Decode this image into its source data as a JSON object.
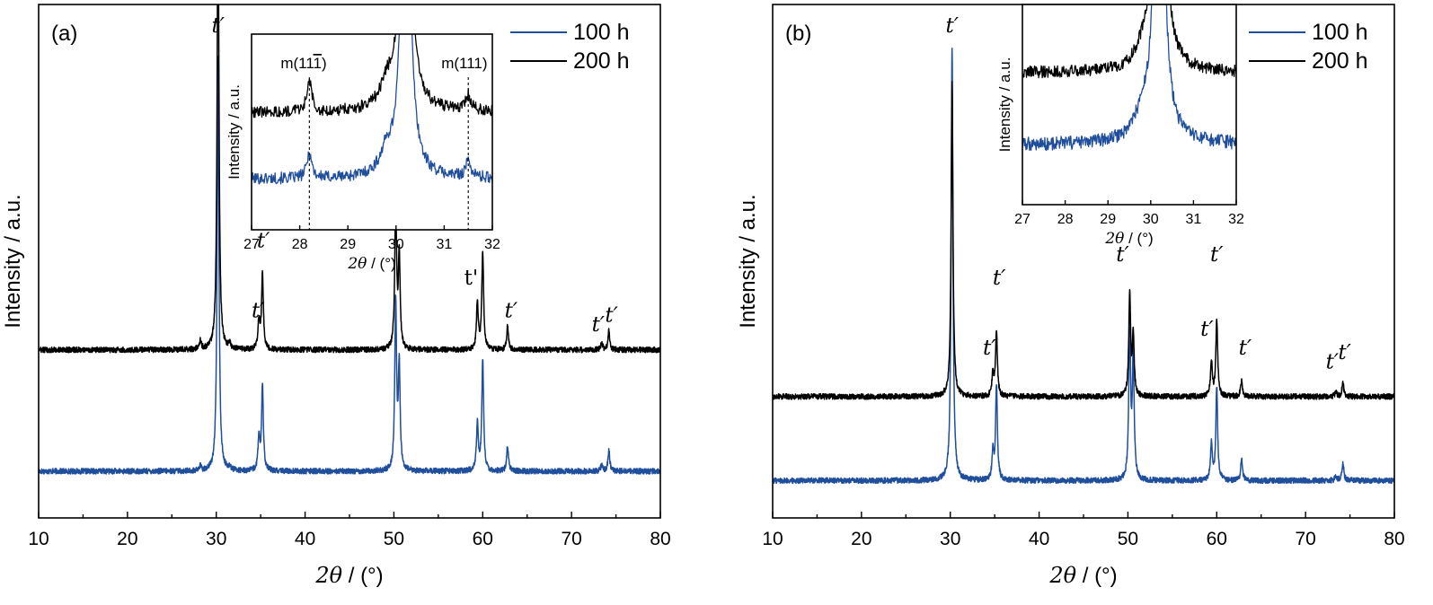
{
  "chart_data": [
    {
      "type": "line",
      "panel_label": "(a)",
      "xlabel_italic": "2θ",
      "xlabel_unit": " / (°)",
      "ylabel": "Intensity / a.u.",
      "xlim": [
        10,
        80
      ],
      "xticks": [
        "10",
        "20",
        "30",
        "40",
        "50",
        "60",
        "70",
        "80"
      ],
      "yticks_shown": false,
      "legend": {
        "placement": "top-right",
        "entries": [
          {
            "label": "100 h",
            "color": "#1f4e9c"
          },
          {
            "label": "200 h",
            "color": "#000000"
          }
        ]
      },
      "series": [
        {
          "name": "100 h",
          "color": "#1f4e9c",
          "baseline": 0.1,
          "noise": 0.006,
          "peaks": [
            [
              28.2,
              0.01
            ],
            [
              30.2,
              0.89
            ],
            [
              31.5,
              0.007
            ],
            [
              34.8,
              0.07
            ],
            [
              35.2,
              0.185
            ],
            [
              50.2,
              0.36
            ],
            [
              50.6,
              0.22
            ],
            [
              59.4,
              0.1
            ],
            [
              60.0,
              0.24
            ],
            [
              62.8,
              0.055
            ],
            [
              73.4,
              0.015
            ],
            [
              74.2,
              0.045
            ]
          ]
        },
        {
          "name": "200 h",
          "color": "#000000",
          "baseline": 0.36,
          "noise": 0.006,
          "peaks": [
            [
              28.2,
              0.018
            ],
            [
              30.2,
              1.0
            ],
            [
              31.5,
              0.01
            ],
            [
              34.8,
              0.06
            ],
            [
              35.2,
              0.165
            ],
            [
              50.2,
              0.315
            ],
            [
              50.6,
              0.2
            ],
            [
              59.4,
              0.1
            ],
            [
              60.0,
              0.21
            ],
            [
              62.8,
              0.05
            ],
            [
              73.4,
              0.015
            ],
            [
              74.2,
              0.04
            ]
          ]
        }
      ],
      "annotations": [
        {
          "text": "t′",
          "x": 30.2,
          "y": 1.04,
          "upright": false
        },
        {
          "text": "t′",
          "x": 34.7,
          "y": 0.43,
          "upright": false
        },
        {
          "text": "t′",
          "x": 35.3,
          "y": 0.58,
          "upright": false
        },
        {
          "text": "t′",
          "x": 49.3,
          "y": 0.71,
          "upright": false
        },
        {
          "text": "t'",
          "x": 58.7,
          "y": 0.5,
          "upright": true
        },
        {
          "text": "t′",
          "x": 59.8,
          "y": 0.64,
          "upright": false
        },
        {
          "text": "t′",
          "x": 63.2,
          "y": 0.43,
          "upright": false
        },
        {
          "text": "t′",
          "x": 73.0,
          "y": 0.4,
          "upright": false
        },
        {
          "text": "t′",
          "x": 74.5,
          "y": 0.42,
          "upright": false
        }
      ],
      "inset": {
        "xlim": [
          27,
          32
        ],
        "xticks": [
          "27",
          "28",
          "29",
          "30",
          "31",
          "32"
        ],
        "xlabel_italic": "2θ",
        "xlabel_unit": " / (°)",
        "ylabel": "Intensity / a.u.",
        "ylim": [
          0,
          1
        ],
        "reference_lines": [
          28.2,
          31.5
        ],
        "reference_labels": [
          "m(11",
          "m(111)"
        ],
        "series": [
          {
            "name": "100 h",
            "color": "#1f4e9c",
            "baseline": 0.26,
            "noise": 0.03,
            "peaks": [
              [
                28.2,
                0.13,
                0.06
              ],
              [
                29.8,
                0.1,
                0.15
              ],
              [
                30.2,
                2.0,
                0.1
              ],
              [
                31.5,
                0.08,
                0.07
              ]
            ]
          },
          {
            "name": "200 h",
            "color": "#000000",
            "baseline": 0.6,
            "noise": 0.03,
            "peaks": [
              [
                28.2,
                0.16,
                0.06
              ],
              [
                29.8,
                0.11,
                0.15
              ],
              [
                30.2,
                2.0,
                0.1
              ],
              [
                31.5,
                0.08,
                0.07
              ]
            ]
          }
        ]
      }
    },
    {
      "type": "line",
      "panel_label": "(b)",
      "xlabel_italic": "2θ",
      "xlabel_unit": " / (°)",
      "ylabel": "Intensity / a.u.",
      "xlim": [
        10,
        80
      ],
      "xticks": [
        "10",
        "20",
        "30",
        "40",
        "50",
        "60",
        "70",
        "80"
      ],
      "yticks_shown": false,
      "legend": {
        "placement": "top-right",
        "entries": [
          {
            "label": "100 h",
            "color": "#1f4e9c"
          },
          {
            "label": "200 h",
            "color": "#000000"
          }
        ]
      },
      "series": [
        {
          "name": "100 h",
          "color": "#1f4e9c",
          "baseline": 0.08,
          "noise": 0.006,
          "peaks": [
            [
              30.2,
              0.93
            ],
            [
              34.8,
              0.06
            ],
            [
              35.2,
              0.205
            ],
            [
              50.2,
              0.33
            ],
            [
              50.6,
              0.26
            ],
            [
              59.4,
              0.08
            ],
            [
              60.0,
              0.2
            ],
            [
              62.8,
              0.045
            ],
            [
              73.4,
              0.01
            ],
            [
              74.2,
              0.04
            ]
          ]
        },
        {
          "name": "200 h",
          "color": "#000000",
          "baseline": 0.26,
          "noise": 0.006,
          "peaks": [
            [
              30.2,
              0.67
            ],
            [
              34.8,
              0.05
            ],
            [
              35.2,
              0.14
            ],
            [
              50.2,
              0.22
            ],
            [
              50.6,
              0.13
            ],
            [
              59.4,
              0.075
            ],
            [
              60.0,
              0.165
            ],
            [
              62.8,
              0.035
            ],
            [
              73.4,
              0.01
            ],
            [
              74.2,
              0.03
            ]
          ]
        }
      ],
      "annotations": [
        {
          "text": "t′",
          "x": 30.2,
          "y": 1.04,
          "upright": false
        },
        {
          "text": "t′",
          "x": 34.4,
          "y": 0.35,
          "upright": false
        },
        {
          "text": "t′",
          "x": 35.5,
          "y": 0.5,
          "upright": false
        },
        {
          "text": "t′",
          "x": 49.4,
          "y": 0.55,
          "upright": false
        },
        {
          "text": "t′",
          "x": 58.9,
          "y": 0.39,
          "upright": false
        },
        {
          "text": "t′",
          "x": 60.0,
          "y": 0.55,
          "upright": false
        },
        {
          "text": "t′",
          "x": 63.2,
          "y": 0.35,
          "upright": false
        },
        {
          "text": "t′",
          "x": 73.0,
          "y": 0.32,
          "upright": false
        },
        {
          "text": "t′",
          "x": 74.4,
          "y": 0.34,
          "upright": false
        }
      ],
      "inset": {
        "xlim": [
          27,
          32
        ],
        "xticks": [
          "27",
          "28",
          "29",
          "30",
          "31",
          "32"
        ],
        "xlabel_italic": "2θ",
        "xlabel_unit": " / (°)",
        "ylabel": "Intensity / a.u.",
        "ylim": [
          0,
          1
        ],
        "reference_lines": [],
        "reference_labels": [],
        "series": [
          {
            "name": "100 h",
            "color": "#1f4e9c",
            "baseline": 0.3,
            "noise": 0.035,
            "peaks": [
              [
                29.8,
                0.1,
                0.25
              ],
              [
                30.2,
                2.0,
                0.12
              ]
            ]
          },
          {
            "name": "200 h",
            "color": "#000000",
            "baseline": 0.66,
            "noise": 0.03,
            "peaks": [
              [
                29.8,
                0.06,
                0.2
              ],
              [
                30.2,
                2.0,
                0.12
              ]
            ]
          }
        ]
      }
    }
  ]
}
